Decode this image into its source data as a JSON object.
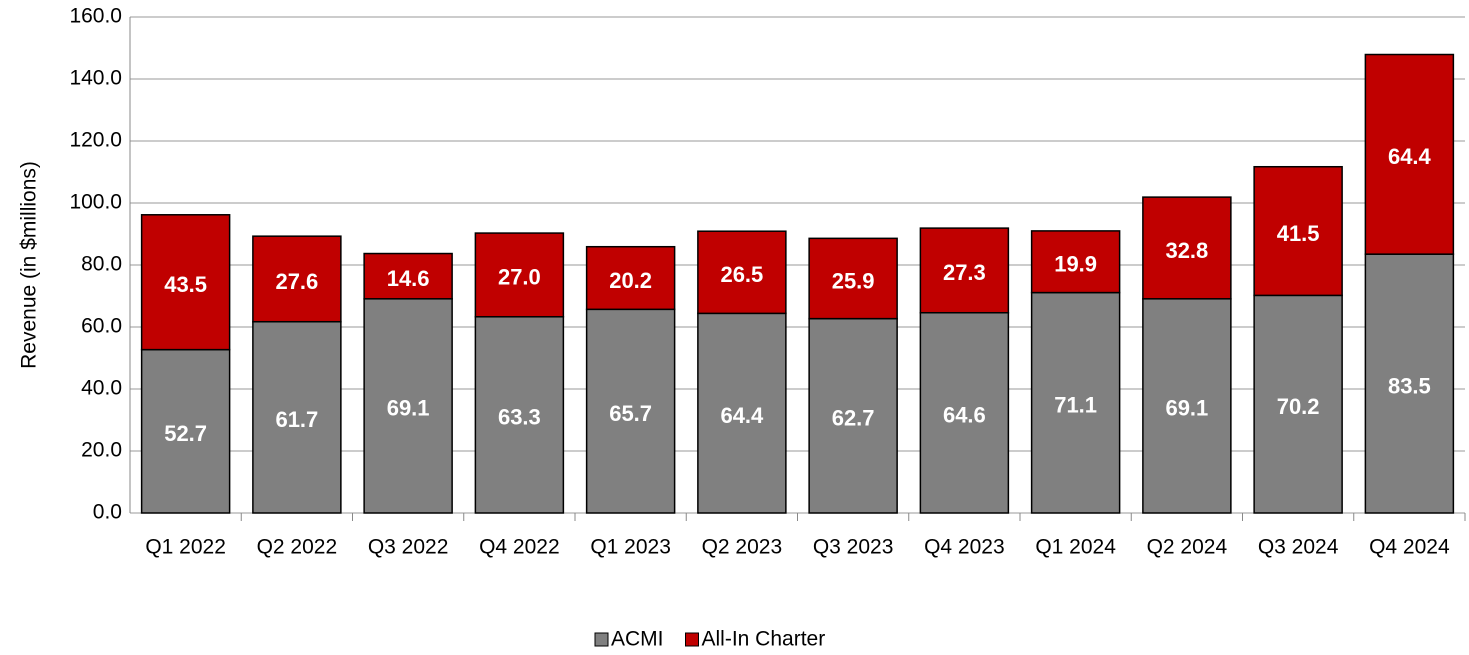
{
  "chart_data": {
    "type": "stacked_bar",
    "y_label": "Revenue (in $millions)",
    "categories": [
      "Q1 2022",
      "Q2 2022",
      "Q3 2022",
      "Q4 2022",
      "Q1 2023",
      "Q2 2023",
      "Q3 2023",
      "Q4 2023",
      "Q1 2024",
      "Q2 2024",
      "Q3 2024",
      "Q4 2024"
    ],
    "series": [
      {
        "name": "ACMI",
        "color": "#808080",
        "values": [
          52.7,
          61.7,
          69.1,
          63.3,
          65.7,
          64.4,
          62.7,
          64.6,
          71.1,
          69.1,
          70.2,
          83.5
        ],
        "value_labels": [
          "52.7",
          "61.7",
          "69.1",
          "63.3",
          "65.7",
          "64.4",
          "62.7",
          "64.6",
          "71.1",
          "69.1",
          "70.2",
          "83.5"
        ]
      },
      {
        "name": "All-In Charter",
        "color": "#c00000",
        "values": [
          43.5,
          27.6,
          14.6,
          27.0,
          20.2,
          26.5,
          25.9,
          27.3,
          19.9,
          32.8,
          41.5,
          64.4
        ],
        "value_labels": [
          "43.5",
          "27.6",
          "14.6",
          "27.0",
          "20.2",
          "26.5",
          "25.9",
          "27.3",
          "19.9",
          "32.8",
          "41.5",
          "64.4"
        ]
      }
    ],
    "ylim": [
      0,
      160
    ],
    "yticks": [
      {
        "value": 0,
        "label": "0.0"
      },
      {
        "value": 20,
        "label": "20.0"
      },
      {
        "value": 40,
        "label": "40.0"
      },
      {
        "value": 60,
        "label": "60.0"
      },
      {
        "value": 80,
        "label": "80.0"
      },
      {
        "value": 100,
        "label": "100.0"
      },
      {
        "value": 120,
        "label": "120.0"
      },
      {
        "value": 140,
        "label": "140.0"
      },
      {
        "value": 160,
        "label": "160.0"
      }
    ],
    "grid": true,
    "legend": "bottom"
  }
}
